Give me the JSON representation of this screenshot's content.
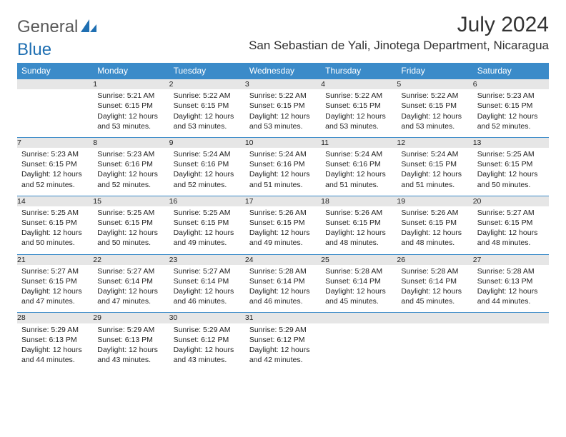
{
  "logo": {
    "part1": "General",
    "part2": "Blue"
  },
  "colors": {
    "header_bg": "#3b8bc9",
    "header_fg": "#ffffff",
    "daynum_bg": "#e6e6e6",
    "rule": "#3b8bc9",
    "logo_gray": "#5a5a5a",
    "logo_blue": "#1f6fb2"
  },
  "title": "July 2024",
  "location": "San Sebastian de Yali, Jinotega Department, Nicaragua",
  "weekdays": [
    "Sunday",
    "Monday",
    "Tuesday",
    "Wednesday",
    "Thursday",
    "Friday",
    "Saturday"
  ],
  "weeks": [
    [
      {
        "n": "",
        "sr": "",
        "ss": "",
        "dl": ""
      },
      {
        "n": "1",
        "sr": "Sunrise: 5:21 AM",
        "ss": "Sunset: 6:15 PM",
        "dl": "Daylight: 12 hours and 53 minutes."
      },
      {
        "n": "2",
        "sr": "Sunrise: 5:22 AM",
        "ss": "Sunset: 6:15 PM",
        "dl": "Daylight: 12 hours and 53 minutes."
      },
      {
        "n": "3",
        "sr": "Sunrise: 5:22 AM",
        "ss": "Sunset: 6:15 PM",
        "dl": "Daylight: 12 hours and 53 minutes."
      },
      {
        "n": "4",
        "sr": "Sunrise: 5:22 AM",
        "ss": "Sunset: 6:15 PM",
        "dl": "Daylight: 12 hours and 53 minutes."
      },
      {
        "n": "5",
        "sr": "Sunrise: 5:22 AM",
        "ss": "Sunset: 6:15 PM",
        "dl": "Daylight: 12 hours and 53 minutes."
      },
      {
        "n": "6",
        "sr": "Sunrise: 5:23 AM",
        "ss": "Sunset: 6:15 PM",
        "dl": "Daylight: 12 hours and 52 minutes."
      }
    ],
    [
      {
        "n": "7",
        "sr": "Sunrise: 5:23 AM",
        "ss": "Sunset: 6:15 PM",
        "dl": "Daylight: 12 hours and 52 minutes."
      },
      {
        "n": "8",
        "sr": "Sunrise: 5:23 AM",
        "ss": "Sunset: 6:16 PM",
        "dl": "Daylight: 12 hours and 52 minutes."
      },
      {
        "n": "9",
        "sr": "Sunrise: 5:24 AM",
        "ss": "Sunset: 6:16 PM",
        "dl": "Daylight: 12 hours and 52 minutes."
      },
      {
        "n": "10",
        "sr": "Sunrise: 5:24 AM",
        "ss": "Sunset: 6:16 PM",
        "dl": "Daylight: 12 hours and 51 minutes."
      },
      {
        "n": "11",
        "sr": "Sunrise: 5:24 AM",
        "ss": "Sunset: 6:16 PM",
        "dl": "Daylight: 12 hours and 51 minutes."
      },
      {
        "n": "12",
        "sr": "Sunrise: 5:24 AM",
        "ss": "Sunset: 6:15 PM",
        "dl": "Daylight: 12 hours and 51 minutes."
      },
      {
        "n": "13",
        "sr": "Sunrise: 5:25 AM",
        "ss": "Sunset: 6:15 PM",
        "dl": "Daylight: 12 hours and 50 minutes."
      }
    ],
    [
      {
        "n": "14",
        "sr": "Sunrise: 5:25 AM",
        "ss": "Sunset: 6:15 PM",
        "dl": "Daylight: 12 hours and 50 minutes."
      },
      {
        "n": "15",
        "sr": "Sunrise: 5:25 AM",
        "ss": "Sunset: 6:15 PM",
        "dl": "Daylight: 12 hours and 50 minutes."
      },
      {
        "n": "16",
        "sr": "Sunrise: 5:25 AM",
        "ss": "Sunset: 6:15 PM",
        "dl": "Daylight: 12 hours and 49 minutes."
      },
      {
        "n": "17",
        "sr": "Sunrise: 5:26 AM",
        "ss": "Sunset: 6:15 PM",
        "dl": "Daylight: 12 hours and 49 minutes."
      },
      {
        "n": "18",
        "sr": "Sunrise: 5:26 AM",
        "ss": "Sunset: 6:15 PM",
        "dl": "Daylight: 12 hours and 48 minutes."
      },
      {
        "n": "19",
        "sr": "Sunrise: 5:26 AM",
        "ss": "Sunset: 6:15 PM",
        "dl": "Daylight: 12 hours and 48 minutes."
      },
      {
        "n": "20",
        "sr": "Sunrise: 5:27 AM",
        "ss": "Sunset: 6:15 PM",
        "dl": "Daylight: 12 hours and 48 minutes."
      }
    ],
    [
      {
        "n": "21",
        "sr": "Sunrise: 5:27 AM",
        "ss": "Sunset: 6:15 PM",
        "dl": "Daylight: 12 hours and 47 minutes."
      },
      {
        "n": "22",
        "sr": "Sunrise: 5:27 AM",
        "ss": "Sunset: 6:14 PM",
        "dl": "Daylight: 12 hours and 47 minutes."
      },
      {
        "n": "23",
        "sr": "Sunrise: 5:27 AM",
        "ss": "Sunset: 6:14 PM",
        "dl": "Daylight: 12 hours and 46 minutes."
      },
      {
        "n": "24",
        "sr": "Sunrise: 5:28 AM",
        "ss": "Sunset: 6:14 PM",
        "dl": "Daylight: 12 hours and 46 minutes."
      },
      {
        "n": "25",
        "sr": "Sunrise: 5:28 AM",
        "ss": "Sunset: 6:14 PM",
        "dl": "Daylight: 12 hours and 45 minutes."
      },
      {
        "n": "26",
        "sr": "Sunrise: 5:28 AM",
        "ss": "Sunset: 6:14 PM",
        "dl": "Daylight: 12 hours and 45 minutes."
      },
      {
        "n": "27",
        "sr": "Sunrise: 5:28 AM",
        "ss": "Sunset: 6:13 PM",
        "dl": "Daylight: 12 hours and 44 minutes."
      }
    ],
    [
      {
        "n": "28",
        "sr": "Sunrise: 5:29 AM",
        "ss": "Sunset: 6:13 PM",
        "dl": "Daylight: 12 hours and 44 minutes."
      },
      {
        "n": "29",
        "sr": "Sunrise: 5:29 AM",
        "ss": "Sunset: 6:13 PM",
        "dl": "Daylight: 12 hours and 43 minutes."
      },
      {
        "n": "30",
        "sr": "Sunrise: 5:29 AM",
        "ss": "Sunset: 6:12 PM",
        "dl": "Daylight: 12 hours and 43 minutes."
      },
      {
        "n": "31",
        "sr": "Sunrise: 5:29 AM",
        "ss": "Sunset: 6:12 PM",
        "dl": "Daylight: 12 hours and 42 minutes."
      },
      {
        "n": "",
        "sr": "",
        "ss": "",
        "dl": ""
      },
      {
        "n": "",
        "sr": "",
        "ss": "",
        "dl": ""
      },
      {
        "n": "",
        "sr": "",
        "ss": "",
        "dl": ""
      }
    ]
  ]
}
